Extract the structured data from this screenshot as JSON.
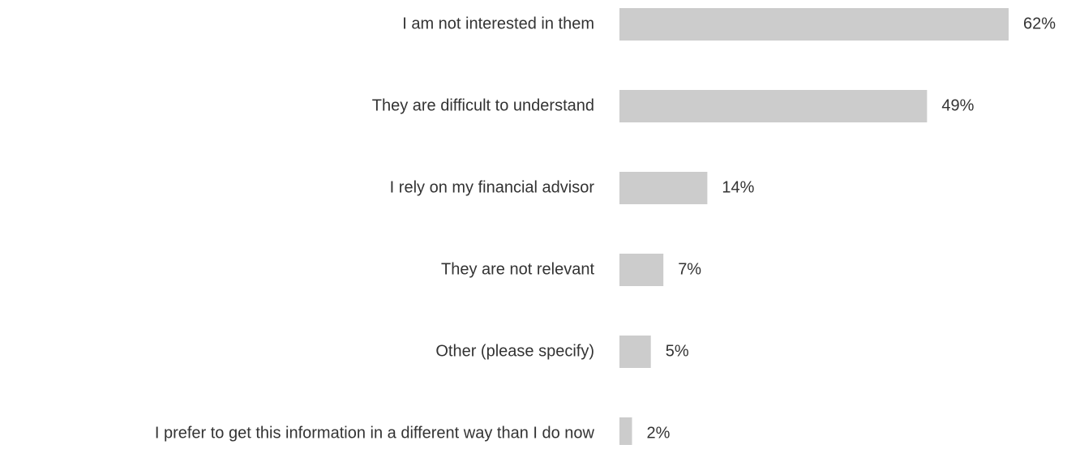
{
  "chart_data": {
    "type": "bar",
    "orientation": "horizontal",
    "categories": [
      "I am not interested in them",
      "They are difficult to understand",
      "I rely on my financial advisor",
      "They are not relevant",
      "Other (please specify)",
      "I prefer to get this information in a different way than I do now"
    ],
    "values": [
      62,
      49,
      14,
      7,
      5,
      2
    ],
    "value_labels": [
      "62%",
      "49%",
      "14%",
      "7%",
      "5%",
      "2%"
    ],
    "color": "#cccccc"
  }
}
